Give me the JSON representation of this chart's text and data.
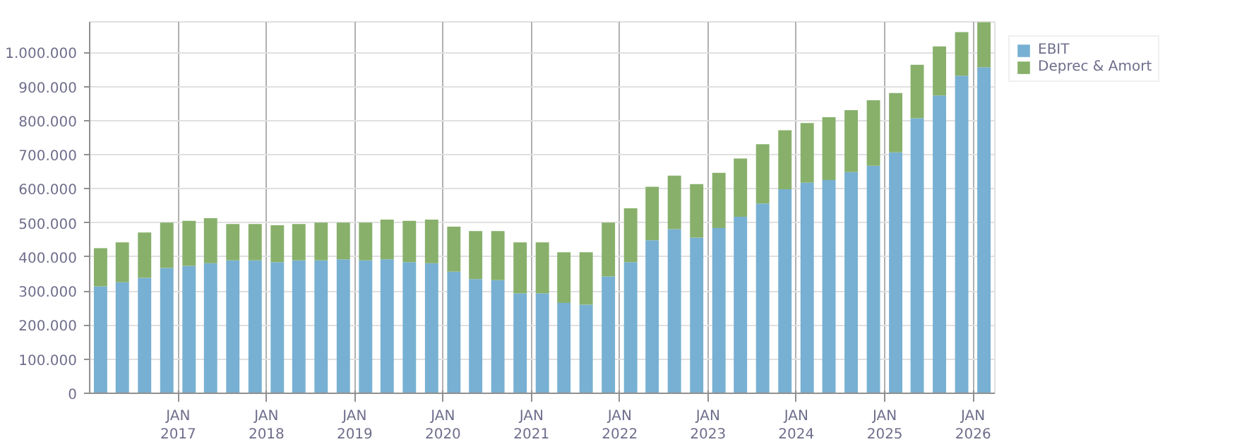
{
  "chart_data": {
    "type": "bar",
    "stacked": true,
    "grid": true,
    "legend": "top right",
    "x": [
      "2016-02-15",
      "2016-05-15",
      "2016-08-15",
      "2016-11-15",
      "2017-02-15",
      "2017-05-15",
      "2017-08-15",
      "2017-11-15",
      "2018-02-15",
      "2018-05-15",
      "2018-08-15",
      "2018-11-15",
      "2019-02-15",
      "2019-05-15",
      "2019-08-15",
      "2019-11-15",
      "2020-02-15",
      "2020-05-15",
      "2020-08-15",
      "2020-11-15",
      "2021-02-15",
      "2021-05-15",
      "2021-08-15",
      "2021-11-15",
      "2022-02-15",
      "2022-05-15",
      "2022-08-15",
      "2022-11-15",
      "2023-02-15",
      "2023-05-15",
      "2023-08-15",
      "2023-11-15",
      "2024-02-15",
      "2024-05-15",
      "2024-08-15",
      "2024-11-15",
      "2025-02-15",
      "2025-05-15",
      "2025-08-15",
      "2025-11-15",
      "2026-02-15"
    ],
    "series": [
      {
        "name": "EBIT",
        "color": "#77b0d2",
        "values": [
          314000,
          326000,
          339000,
          368000,
          374000,
          382000,
          390000,
          390000,
          385000,
          390000,
          390000,
          393000,
          390000,
          393000,
          385000,
          382000,
          357000,
          335000,
          332000,
          293000,
          293000,
          265000,
          260000,
          343000,
          385000,
          449000,
          482000,
          457000,
          485000,
          518000,
          557000,
          599000,
          618000,
          626000,
          649000,
          668000,
          707000,
          807000,
          874000,
          932000,
          957000
        ]
      },
      {
        "name": "Deprec & Amort",
        "color": "#88b06b",
        "values": [
          112000,
          117000,
          133000,
          133000,
          132000,
          132000,
          107000,
          107000,
          108000,
          107000,
          111000,
          108000,
          111000,
          117000,
          121000,
          128000,
          132000,
          141000,
          144000,
          150000,
          150000,
          149000,
          154000,
          158000,
          158000,
          157000,
          157000,
          157000,
          162000,
          171000,
          174000,
          173000,
          175000,
          184000,
          182000,
          192000,
          174000,
          157000,
          144000,
          128000,
          132000
        ]
      }
    ],
    "xlim": [
      "2016-01-01",
      "2026-04-01"
    ],
    "xticks": [
      {
        "value": "2017-01-01",
        "label": "JAN\n2017"
      },
      {
        "value": "2018-01-01",
        "label": "JAN\n2018"
      },
      {
        "value": "2019-01-01",
        "label": "JAN\n2019"
      },
      {
        "value": "2020-01-01",
        "label": "JAN\n2020"
      },
      {
        "value": "2021-01-01",
        "label": "JAN\n2021"
      },
      {
        "value": "2022-01-01",
        "label": "JAN\n2022"
      },
      {
        "value": "2023-01-01",
        "label": "JAN\n2023"
      },
      {
        "value": "2024-01-01",
        "label": "JAN\n2024"
      },
      {
        "value": "2025-01-01",
        "label": "JAN\n2025"
      },
      {
        "value": "2026-01-01",
        "label": "JAN\n2026"
      }
    ],
    "ylim": [
      0,
      1090000
    ],
    "yticks": [
      0,
      {
        "value": 100000,
        "label": "100.000"
      },
      {
        "value": 200000,
        "label": "200.000"
      },
      {
        "value": 300000,
        "label": "300.000"
      },
      {
        "value": 400000,
        "label": "400.000"
      },
      {
        "value": 500000,
        "label": "500.000"
      },
      {
        "value": 600000,
        "label": "600.000"
      },
      {
        "value": 700000,
        "label": "700.000"
      },
      {
        "value": 800000,
        "label": "800.000"
      },
      {
        "value": 900000,
        "label": "900.000"
      },
      {
        "value": 1000000,
        "label": "1.000.000"
      }
    ]
  }
}
